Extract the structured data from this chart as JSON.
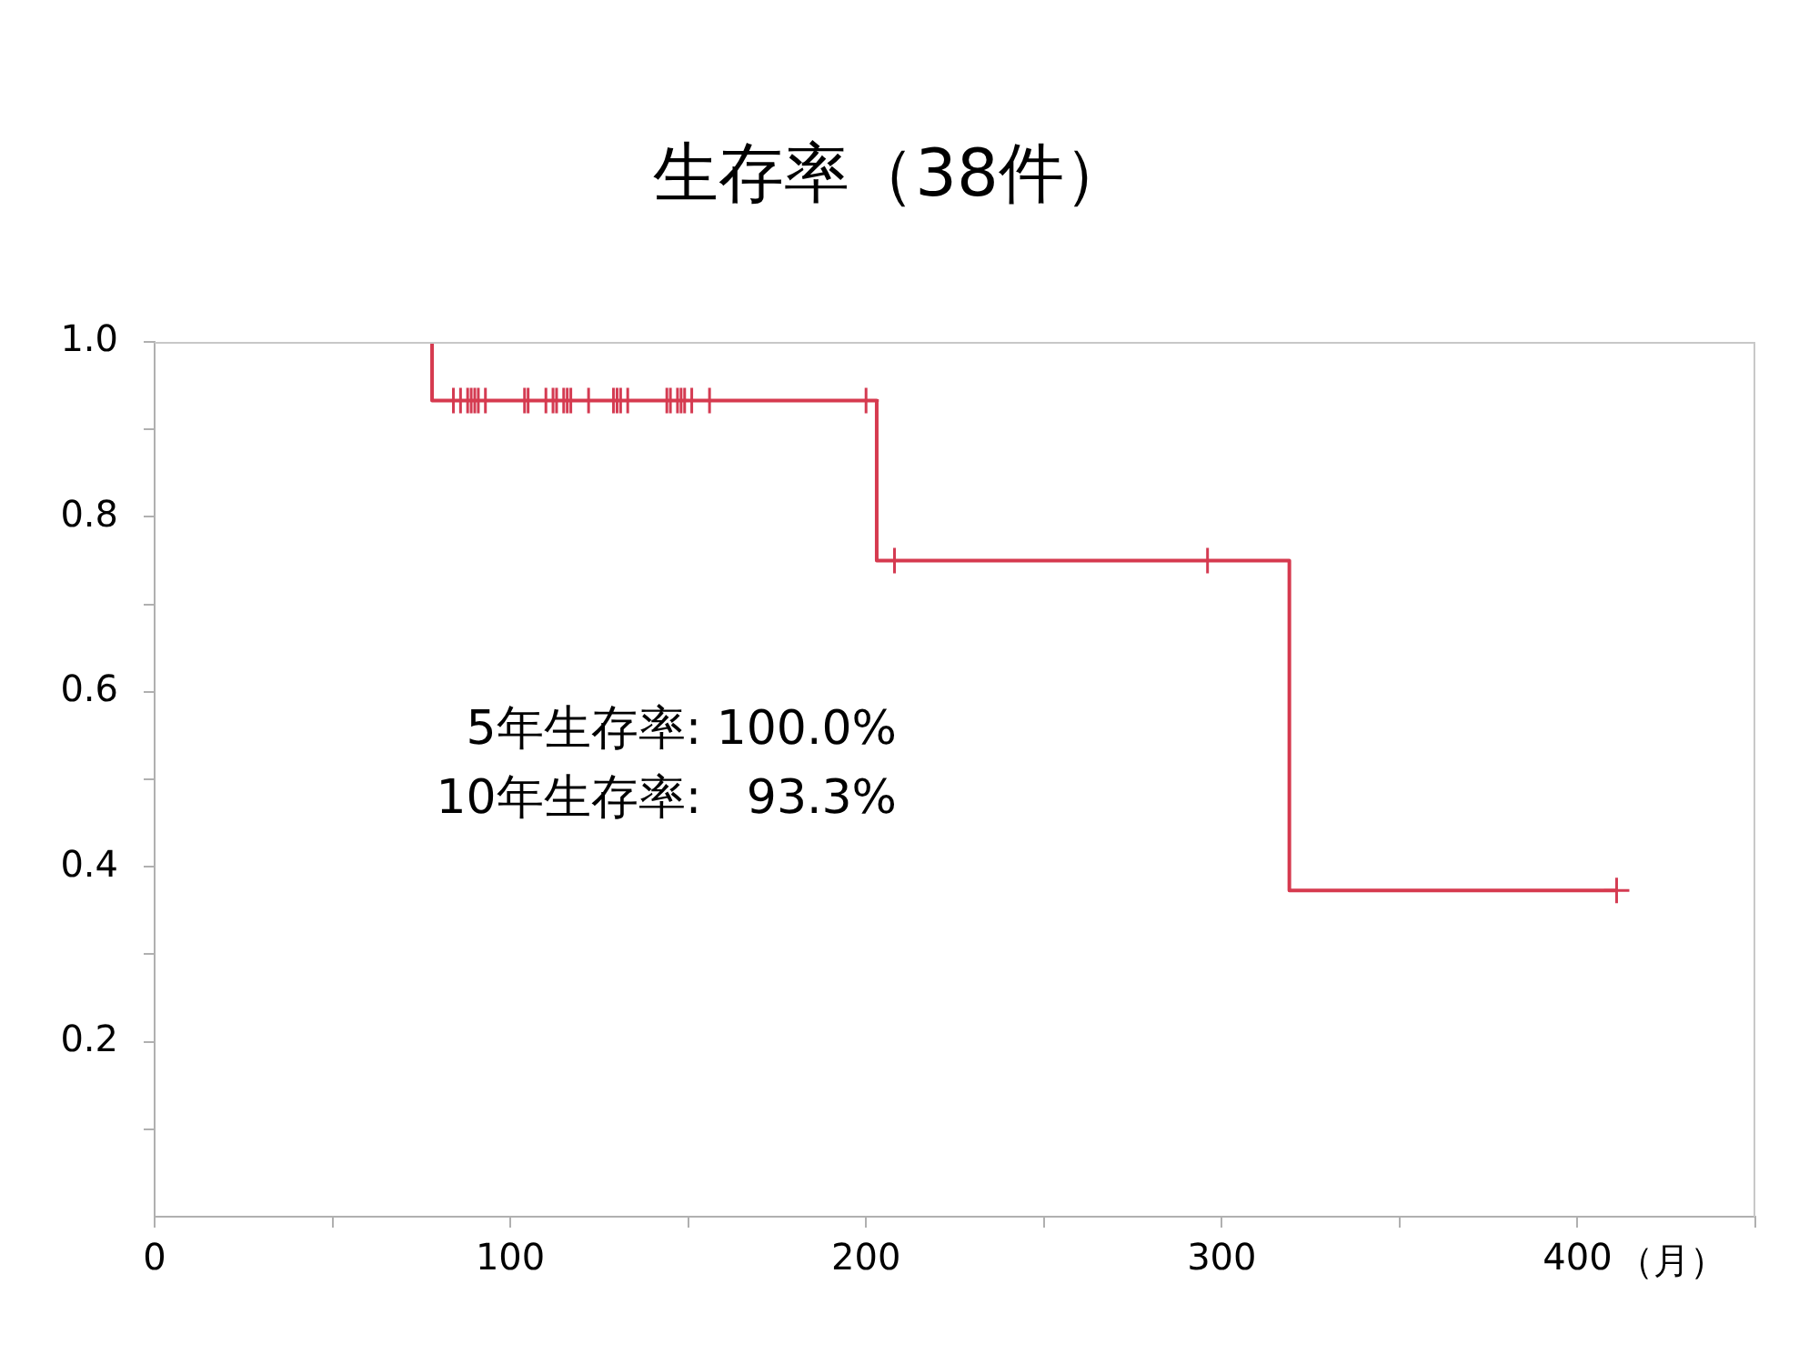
{
  "chart_data": {
    "type": "step",
    "title": "生存率（38件）",
    "xlabel": "（月）",
    "series": [
      {
        "color": "#d63a4f",
        "x": [
          78,
          78,
          203,
          319,
          411
        ],
        "values": [
          1,
          0.933,
          0.75,
          0.373,
          0.373
        ],
        "marker": "none"
      },
      {
        "type": "scatter",
        "color": "#d43b52",
        "marker": "cross",
        "x": [
          84,
          86,
          88,
          89,
          90,
          91,
          93,
          104,
          105,
          110,
          112,
          113,
          115,
          116,
          117,
          122,
          129,
          130,
          131,
          133,
          144,
          145,
          147,
          148,
          149,
          151,
          156,
          200,
          208,
          296,
          411
        ],
        "values": [
          0.933,
          0.933,
          0.933,
          0.933,
          0.933,
          0.933,
          0.933,
          0.933,
          0.933,
          0.933,
          0.933,
          0.933,
          0.933,
          0.933,
          0.933,
          0.933,
          0.933,
          0.933,
          0.933,
          0.933,
          0.933,
          0.933,
          0.933,
          0.933,
          0.933,
          0.933,
          0.933,
          0.933,
          0.75,
          0.75,
          0.373
        ]
      }
    ],
    "xlim": [
      0,
      450
    ],
    "xticks": [
      0,
      {
        "value": 50,
        "label": null
      },
      100,
      {
        "value": 150,
        "label": null
      },
      200,
      {
        "value": 250,
        "label": null
      },
      300,
      {
        "value": 350,
        "label": null
      },
      400,
      {
        "value": 450,
        "label": null
      }
    ],
    "ylim": [
      0,
      1
    ],
    "yticks": [
      {
        "value": 0.1,
        "label": null
      },
      {
        "value": 0.2,
        "label": "0.2"
      },
      {
        "value": 0.3,
        "label": null
      },
      {
        "value": 0.4,
        "label": "0.4"
      },
      {
        "value": 0.5,
        "label": null
      },
      {
        "value": 0.6,
        "label": "0.6"
      },
      {
        "value": 0.7,
        "label": null
      },
      {
        "value": 0.8,
        "label": "0.8"
      },
      {
        "value": 0.9,
        "label": null
      },
      {
        "value": 1,
        "label": "1.0"
      }
    ],
    "grid": false,
    "legend": false,
    "annotations": [
      "5年生存率: 100.0%",
      "10年生存率:   93.3%"
    ]
  }
}
